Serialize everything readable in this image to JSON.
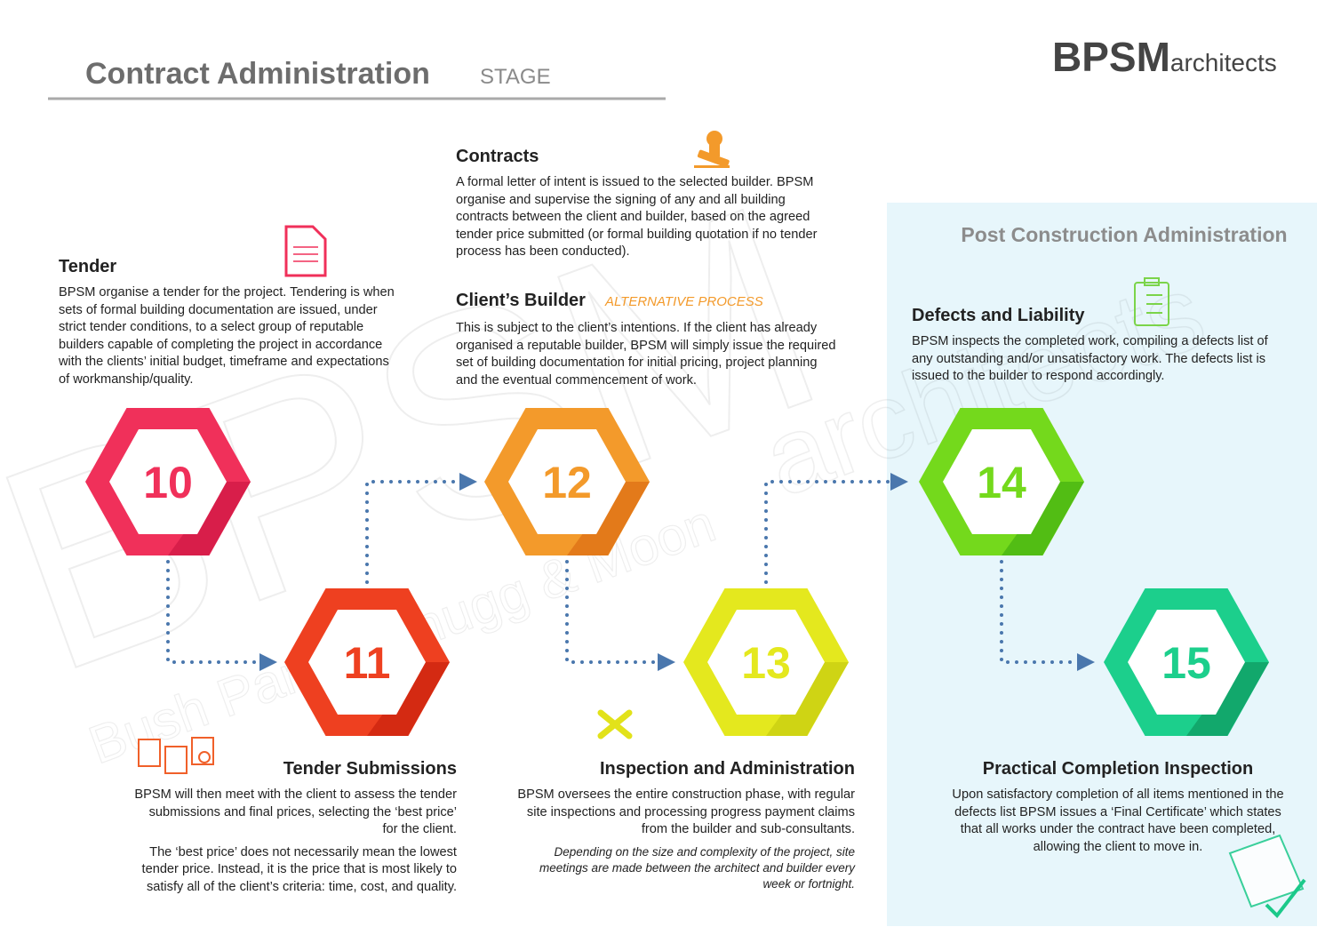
{
  "header": {
    "title": "Contract Administration",
    "subtitle": "STAGE",
    "logo_bold": "BPSM",
    "logo_light": "architects"
  },
  "watermark": {
    "main": "BPSM",
    "sub": "architects",
    "tagline": "Bush Parker Shugg & Moon"
  },
  "post_construction": {
    "title": "Post Construction Administration"
  },
  "steps": [
    {
      "number": "10",
      "title": "Tender",
      "paragraphs": [
        "BPSM organise a tender for the project. Tendering is when sets of formal building documentation are issued, under strict tender conditions, to a select group of reputable builders capable of completing the project in accordance with the clients’ initial budget, timeframe and expectations of workmanship/quality."
      ]
    },
    {
      "number": "11",
      "title": "Tender Submissions",
      "paragraphs": [
        "BPSM will then meet with the client to assess the tender submissions and final prices, selecting the ‘best price’ for the client.",
        "The ‘best price’ does not necessarily mean the lowest tender price. Instead, it is the price that is most likely to satisfy all of the client’s criteria: time, cost, and quality."
      ]
    },
    {
      "number": "12",
      "title": "Contracts",
      "paragraphs": [
        "A formal letter of intent is issued to the selected builder. BPSM organise and supervise the signing of any and all building contracts between the client and builder, based on the agreed tender price submitted (or formal building quotation if no tender process has been conducted)."
      ],
      "alternative": {
        "title": "Client’s Builder",
        "tag": "ALTERNATIVE PROCESS",
        "paragraphs": [
          "This is subject to the client’s intentions. If the client has already organised a reputable builder, BPSM will simply issue the required set of building documentation for initial pricing, project planning and the eventual commencement of work."
        ]
      }
    },
    {
      "number": "13",
      "title": "Inspection and Administration",
      "paragraphs": [
        "BPSM oversees the entire construction phase, with regular site inspections and processing progress payment claims from the builder and sub-consultants."
      ],
      "note": "Depending on the size and complexity of the project, site meetings are made between the architect and builder every week or fortnight."
    },
    {
      "number": "14",
      "title": "Defects and Liability",
      "paragraphs": [
        "BPSM inspects the completed work, compiling a defects list of any outstanding and/or unsatisfactory work. The defects list is issued to the builder to respond accordingly."
      ]
    },
    {
      "number": "15",
      "title": "Practical Completion Inspection",
      "paragraphs": [
        "Upon satisfactory completion of all items mentioned in the defects list BPSM issues a ‘Final Certificate’ which states that all works under the contract have been completed, allowing the client to move in."
      ]
    }
  ]
}
